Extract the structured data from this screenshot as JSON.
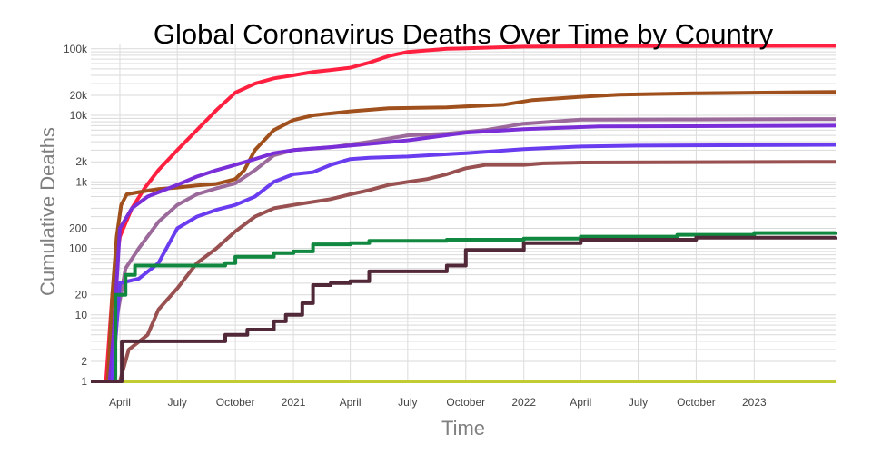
{
  "chart_data": {
    "type": "line",
    "title": "Global Coronavirus Deaths Over Time by Country",
    "xlabel": "Time",
    "ylabel": "Cumulative Deaths",
    "yscale": "log",
    "ylim": [
      1,
      120000
    ],
    "xlim": [
      "2020-02-15",
      "2023-05-10"
    ],
    "grid": true,
    "legend": "none",
    "x_ticks": [
      {
        "date": "2020-04-01",
        "label": "April"
      },
      {
        "date": "2020-07-01",
        "label": "July"
      },
      {
        "date": "2020-10-01",
        "label": "October"
      },
      {
        "date": "2021-01-01",
        "label": "2021"
      },
      {
        "date": "2021-04-01",
        "label": "April"
      },
      {
        "date": "2021-07-01",
        "label": "July"
      },
      {
        "date": "2021-10-01",
        "label": "October"
      },
      {
        "date": "2022-01-01",
        "label": "2022"
      },
      {
        "date": "2022-04-01",
        "label": "April"
      },
      {
        "date": "2022-07-01",
        "label": "July"
      },
      {
        "date": "2022-10-01",
        "label": "October"
      },
      {
        "date": "2023-01-01",
        "label": "2023"
      }
    ],
    "y_ticks": [
      {
        "value": 1,
        "label": "1"
      },
      {
        "value": 2,
        "label": "2"
      },
      {
        "value": 10,
        "label": "10"
      },
      {
        "value": 20,
        "label": "20"
      },
      {
        "value": 100,
        "label": "100"
      },
      {
        "value": 200,
        "label": "200"
      },
      {
        "value": 1000,
        "label": "1k"
      },
      {
        "value": 2000,
        "label": "2k"
      },
      {
        "value": 10000,
        "label": "10k"
      },
      {
        "value": 20000,
        "label": "20k"
      },
      {
        "value": 100000,
        "label": "100k"
      }
    ],
    "series": [
      {
        "color": "#c0cc32",
        "step": false,
        "points": [
          [
            "2020-02-15",
            1
          ],
          [
            "2023-05-10",
            1
          ]
        ]
      },
      {
        "color": "#ff2040",
        "step": false,
        "points": [
          [
            "2020-02-15",
            1
          ],
          [
            "2020-03-10",
            1
          ],
          [
            "2020-03-20",
            20
          ],
          [
            "2020-04-01",
            150
          ],
          [
            "2020-04-20",
            400
          ],
          [
            "2020-05-10",
            800
          ],
          [
            "2020-06-01",
            1500
          ],
          [
            "2020-07-01",
            3000
          ],
          [
            "2020-08-01",
            6000
          ],
          [
            "2020-09-01",
            12000
          ],
          [
            "2020-10-01",
            22000
          ],
          [
            "2020-11-01",
            30000
          ],
          [
            "2020-12-01",
            36000
          ],
          [
            "2021-01-01",
            40000
          ],
          [
            "2021-02-01",
            45000
          ],
          [
            "2021-03-01",
            48000
          ],
          [
            "2021-04-01",
            52000
          ],
          [
            "2021-05-01",
            62000
          ],
          [
            "2021-06-01",
            78000
          ],
          [
            "2021-07-01",
            90000
          ],
          [
            "2021-09-01",
            100000
          ],
          [
            "2022-01-01",
            108000
          ],
          [
            "2022-06-01",
            110000
          ],
          [
            "2023-05-10",
            111000
          ]
        ]
      },
      {
        "color": "#a0501c",
        "step": false,
        "points": [
          [
            "2020-02-15",
            1
          ],
          [
            "2020-03-13",
            1
          ],
          [
            "2020-03-20",
            20
          ],
          [
            "2020-03-27",
            150
          ],
          [
            "2020-04-03",
            450
          ],
          [
            "2020-04-12",
            650
          ],
          [
            "2020-05-01",
            700
          ],
          [
            "2020-06-01",
            780
          ],
          [
            "2020-07-01",
            820
          ],
          [
            "2020-08-01",
            880
          ],
          [
            "2020-09-01",
            930
          ],
          [
            "2020-10-01",
            1100
          ],
          [
            "2020-10-15",
            1500
          ],
          [
            "2020-11-01",
            3000
          ],
          [
            "2020-12-01",
            6000
          ],
          [
            "2021-01-01",
            8500
          ],
          [
            "2021-02-01",
            10000
          ],
          [
            "2021-04-01",
            11500
          ],
          [
            "2021-06-01",
            12800
          ],
          [
            "2021-09-01",
            13200
          ],
          [
            "2021-12-01",
            14500
          ],
          [
            "2022-01-15",
            17000
          ],
          [
            "2022-04-01",
            19000
          ],
          [
            "2022-06-01",
            20500
          ],
          [
            "2022-10-01",
            21500
          ],
          [
            "2023-05-10",
            22500
          ]
        ]
      },
      {
        "color": "#9b6a9b",
        "step": false,
        "points": [
          [
            "2020-02-15",
            1
          ],
          [
            "2020-03-20",
            1
          ],
          [
            "2020-03-28",
            10
          ],
          [
            "2020-04-10",
            50
          ],
          [
            "2020-05-01",
            100
          ],
          [
            "2020-06-01",
            250
          ],
          [
            "2020-07-01",
            450
          ],
          [
            "2020-08-01",
            650
          ],
          [
            "2020-09-01",
            800
          ],
          [
            "2020-10-01",
            950
          ],
          [
            "2020-11-01",
            1500
          ],
          [
            "2020-12-01",
            2500
          ],
          [
            "2021-01-01",
            3000
          ],
          [
            "2021-03-01",
            3300
          ],
          [
            "2021-05-01",
            4000
          ],
          [
            "2021-07-01",
            5000
          ],
          [
            "2021-09-01",
            5300
          ],
          [
            "2021-11-01",
            6000
          ],
          [
            "2022-01-01",
            7500
          ],
          [
            "2022-04-01",
            8600
          ],
          [
            "2022-09-01",
            8700
          ],
          [
            "2023-05-10",
            8800
          ]
        ]
      },
      {
        "color": "#7a2ed8",
        "step": false,
        "points": [
          [
            "2020-02-15",
            1
          ],
          [
            "2020-03-16",
            1
          ],
          [
            "2020-03-22",
            5
          ],
          [
            "2020-04-01",
            200
          ],
          [
            "2020-04-20",
            400
          ],
          [
            "2020-05-15",
            600
          ],
          [
            "2020-07-01",
            900
          ],
          [
            "2020-08-01",
            1200
          ],
          [
            "2020-09-01",
            1500
          ],
          [
            "2020-10-01",
            1800
          ],
          [
            "2020-11-01",
            2200
          ],
          [
            "2020-12-01",
            2700
          ],
          [
            "2021-01-01",
            3000
          ],
          [
            "2021-04-01",
            3500
          ],
          [
            "2021-07-01",
            4200
          ],
          [
            "2021-10-01",
            5500
          ],
          [
            "2022-01-01",
            6200
          ],
          [
            "2022-05-01",
            6800
          ],
          [
            "2023-05-10",
            7000
          ]
        ]
      },
      {
        "color": "#6a3cf0",
        "step": false,
        "points": [
          [
            "2020-02-15",
            1
          ],
          [
            "2020-03-20",
            1
          ],
          [
            "2020-04-01",
            30
          ],
          [
            "2020-05-01",
            35
          ],
          [
            "2020-06-01",
            60
          ],
          [
            "2020-07-01",
            200
          ],
          [
            "2020-08-01",
            300
          ],
          [
            "2020-09-01",
            380
          ],
          [
            "2020-10-01",
            450
          ],
          [
            "2020-11-01",
            600
          ],
          [
            "2020-12-01",
            1000
          ],
          [
            "2021-01-01",
            1300
          ],
          [
            "2021-02-01",
            1400
          ],
          [
            "2021-03-01",
            1800
          ],
          [
            "2021-04-01",
            2200
          ],
          [
            "2021-05-01",
            2300
          ],
          [
            "2021-07-01",
            2400
          ],
          [
            "2021-10-01",
            2700
          ],
          [
            "2022-01-01",
            3100
          ],
          [
            "2022-04-01",
            3400
          ],
          [
            "2022-07-01",
            3500
          ],
          [
            "2023-05-10",
            3600
          ]
        ]
      },
      {
        "color": "#985050",
        "step": false,
        "points": [
          [
            "2020-02-15",
            1
          ],
          [
            "2020-04-01",
            1
          ],
          [
            "2020-04-15",
            3
          ],
          [
            "2020-05-15",
            5
          ],
          [
            "2020-06-01",
            12
          ],
          [
            "2020-07-01",
            25
          ],
          [
            "2020-08-01",
            60
          ],
          [
            "2020-09-01",
            100
          ],
          [
            "2020-10-01",
            180
          ],
          [
            "2020-11-01",
            300
          ],
          [
            "2020-12-01",
            400
          ],
          [
            "2021-01-01",
            450
          ],
          [
            "2021-03-01",
            550
          ],
          [
            "2021-04-01",
            650
          ],
          [
            "2021-05-01",
            750
          ],
          [
            "2021-06-01",
            900
          ],
          [
            "2021-07-01",
            1000
          ],
          [
            "2021-08-01",
            1100
          ],
          [
            "2021-09-01",
            1300
          ],
          [
            "2021-10-01",
            1600
          ],
          [
            "2021-11-01",
            1800
          ],
          [
            "2022-01-01",
            1800
          ],
          [
            "2022-02-01",
            1900
          ],
          [
            "2022-04-01",
            1950
          ],
          [
            "2023-05-10",
            2000
          ]
        ]
      },
      {
        "color": "#108840",
        "step": true,
        "points": [
          [
            "2020-02-15",
            1
          ],
          [
            "2020-03-18",
            1
          ],
          [
            "2020-03-25",
            20
          ],
          [
            "2020-04-10",
            40
          ],
          [
            "2020-04-25",
            55
          ],
          [
            "2020-09-15",
            60
          ],
          [
            "2020-10-01",
            75
          ],
          [
            "2020-12-01",
            85
          ],
          [
            "2021-01-01",
            90
          ],
          [
            "2021-02-01",
            115
          ],
          [
            "2021-04-01",
            120
          ],
          [
            "2021-05-01",
            130
          ],
          [
            "2021-09-01",
            135
          ],
          [
            "2022-01-01",
            140
          ],
          [
            "2022-04-01",
            150
          ],
          [
            "2022-09-01",
            160
          ],
          [
            "2023-01-01",
            170
          ],
          [
            "2023-05-10",
            175
          ]
        ]
      },
      {
        "color": "#502838",
        "step": true,
        "points": [
          [
            "2020-02-15",
            1
          ],
          [
            "2020-04-01",
            1
          ],
          [
            "2020-04-04",
            4
          ],
          [
            "2020-09-15",
            5
          ],
          [
            "2020-10-20",
            6
          ],
          [
            "2020-12-01",
            8
          ],
          [
            "2020-12-20",
            10
          ],
          [
            "2021-01-15",
            15
          ],
          [
            "2021-02-01",
            28
          ],
          [
            "2021-03-01",
            30
          ],
          [
            "2021-04-01",
            32
          ],
          [
            "2021-05-01",
            45
          ],
          [
            "2021-09-01",
            55
          ],
          [
            "2021-10-01",
            95
          ],
          [
            "2022-01-01",
            120
          ],
          [
            "2022-04-01",
            135
          ],
          [
            "2022-10-01",
            145
          ],
          [
            "2023-05-10",
            150
          ]
        ]
      }
    ]
  }
}
